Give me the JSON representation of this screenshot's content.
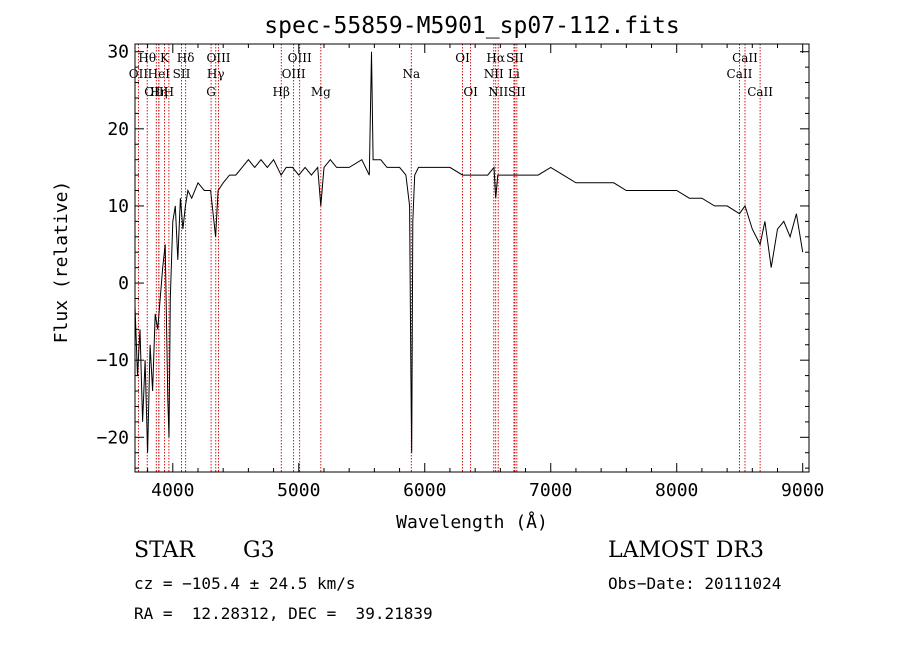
{
  "chart_data": {
    "type": "line",
    "title": "spec-55859-M5901_sp07-112.fits",
    "xlabel": "Wavelength (Å)",
    "ylabel": "Flux (relative)",
    "xlim": [
      3700,
      9050
    ],
    "ylim": [
      -24.5,
      31
    ],
    "x_ticks": [
      4000,
      5000,
      6000,
      7000,
      8000,
      9000
    ],
    "y_ticks": [
      -20,
      -10,
      0,
      10,
      20,
      30
    ],
    "series": [
      {
        "x": [
          3700,
          3720,
          3740,
          3760,
          3780,
          3800,
          3820,
          3840,
          3860,
          3880,
          3900,
          3920,
          3940,
          3960,
          3970,
          3980,
          4000,
          4020,
          4040,
          4060,
          4080,
          4100,
          4120,
          4150,
          4200,
          4250,
          4300,
          4340,
          4360,
          4400,
          4450,
          4500,
          4550,
          4600,
          4650,
          4700,
          4750,
          4800,
          4860,
          4900,
          4950,
          5000,
          5050,
          5100,
          5150,
          5175,
          5200,
          5250,
          5300,
          5400,
          5500,
          5560,
          5577,
          5590,
          5650,
          5700,
          5750,
          5800,
          5850,
          5880,
          5890,
          5896,
          5905,
          5920,
          5950,
          6000,
          6100,
          6200,
          6300,
          6400,
          6500,
          6550,
          6563,
          6580,
          6650,
          6700,
          6800,
          6900,
          7000,
          7100,
          7200,
          7300,
          7400,
          7500,
          7600,
          7700,
          7800,
          7900,
          8000,
          8100,
          8200,
          8300,
          8400,
          8498,
          8542,
          8600,
          8662,
          8700,
          8750,
          8800,
          8850,
          8900,
          8950,
          9000
        ],
        "y": [
          -3,
          -12,
          -6,
          -18,
          -10,
          -22,
          -8,
          -14,
          -4,
          -6,
          -2,
          2,
          5,
          -15,
          -20,
          -2,
          8,
          10,
          3,
          11,
          7,
          10,
          12,
          11,
          13,
          12,
          12,
          6,
          12,
          13,
          14,
          14,
          15,
          16,
          15,
          16,
          15,
          16,
          14,
          15,
          15,
          14,
          15,
          14,
          15,
          10,
          15,
          16,
          15,
          15,
          16,
          14,
          30,
          16,
          16,
          15,
          15,
          15,
          14,
          10,
          -12,
          -22,
          8,
          14,
          15,
          15,
          15,
          15,
          14,
          14,
          14,
          15,
          11,
          14,
          14,
          14,
          14,
          14,
          15,
          14,
          13,
          13,
          13,
          13,
          12,
          12,
          12,
          12,
          12,
          11,
          11,
          10,
          10,
          9,
          10,
          7,
          5,
          8,
          2,
          7,
          8,
          6,
          9,
          4
        ],
        "color": "#000000"
      }
    ],
    "reference_lines": [
      {
        "label": "Hθ",
        "x": 3797,
        "row": 1
      },
      {
        "label": "OII",
        "x": 3727,
        "row": 2
      },
      {
        "label": "OIII",
        "x": 3869,
        "row": 3
      },
      {
        "label": "HeI",
        "x": 3889,
        "row": 2
      },
      {
        "label": "Hη",
        "x": 3889,
        "row": 3
      },
      {
        "label": "K",
        "x": 3934,
        "row": 1
      },
      {
        "label": "SII",
        "x": 4069,
        "row": 2
      },
      {
        "label": "H",
        "x": 3969,
        "row": 3
      },
      {
        "label": "Hδ",
        "x": 4102,
        "row": 1
      },
      {
        "label": "OIII",
        "x": 4363,
        "row": 1
      },
      {
        "label": "Hγ",
        "x": 4341,
        "row": 2
      },
      {
        "label": "G",
        "x": 4304,
        "row": 3
      },
      {
        "label": "Hβ",
        "x": 4861,
        "row": 3
      },
      {
        "label": "OIII",
        "x": 5007,
        "row": 1
      },
      {
        "label": "OIII",
        "x": 4959,
        "row": 2
      },
      {
        "label": "Mg",
        "x": 5175,
        "row": 3
      },
      {
        "label": "Na",
        "x": 5893,
        "row": 2
      },
      {
        "label": "OI",
        "x": 6300,
        "row": 1
      },
      {
        "label": "OI",
        "x": 6364,
        "row": 3
      },
      {
        "label": "Hα",
        "x": 6563,
        "row": 1
      },
      {
        "label": "NII",
        "x": 6548,
        "row": 2
      },
      {
        "label": "NII",
        "x": 6583,
        "row": 3
      },
      {
        "label": "SII",
        "x": 6716,
        "row": 1
      },
      {
        "label": "Li",
        "x": 6708,
        "row": 2
      },
      {
        "label": "SII",
        "x": 6731,
        "row": 3
      },
      {
        "label": "CaII",
        "x": 8542,
        "row": 1
      },
      {
        "label": "CaII",
        "x": 8498,
        "row": 2
      },
      {
        "label": "CaII",
        "x": 8662,
        "row": 3
      }
    ],
    "ref_line_color": "#cc0000",
    "grid": false
  },
  "info": {
    "object_class": "STAR",
    "subclass": "G3",
    "survey": "LAMOST DR3",
    "cz": "cz = −105.4 ± 24.5 km/s",
    "obs_date": "Obs−Date: 20111024",
    "coords": "RA =  12.28312, DEC =  39.21839"
  }
}
